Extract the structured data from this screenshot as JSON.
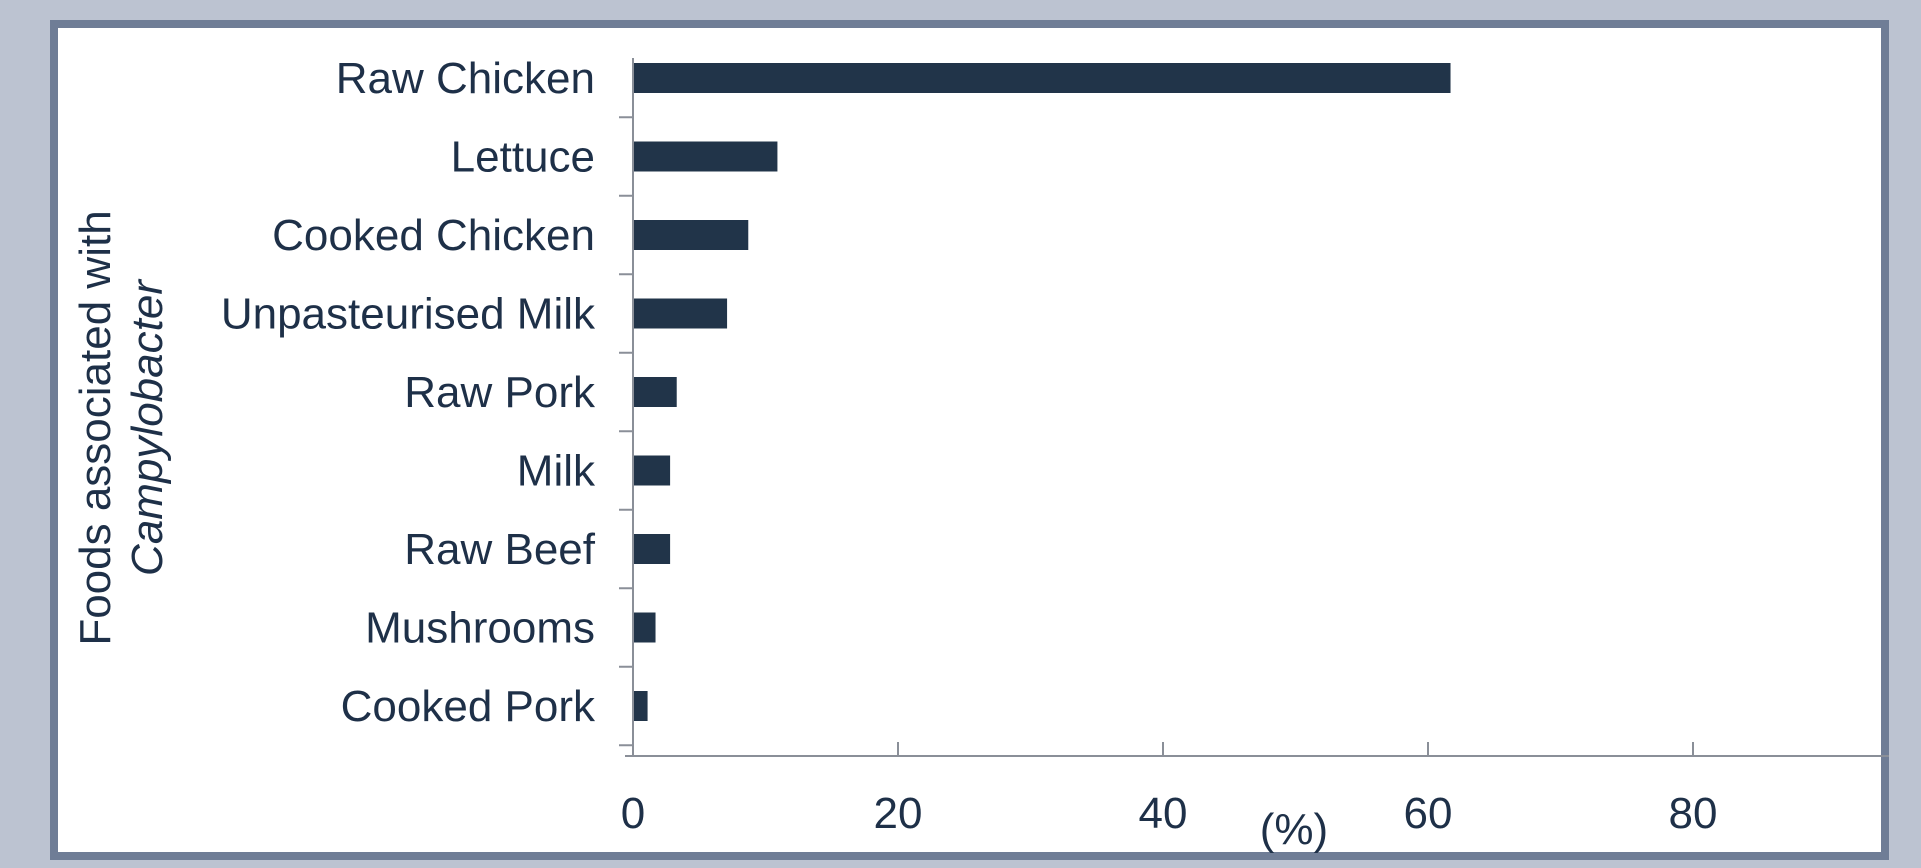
{
  "chart_data": {
    "type": "bar",
    "orientation": "horizontal",
    "categories": [
      "Raw Chicken",
      "Lettuce",
      "Cooked Chicken",
      "Unpasteurised Milk",
      "Raw Pork",
      "Milk",
      "Raw Beef",
      "Mushrooms",
      "Cooked Pork"
    ],
    "values": [
      61.7,
      10.9,
      8.7,
      7.1,
      3.3,
      2.8,
      2.8,
      1.7,
      1.1
    ],
    "title": "",
    "xlabel": "(%)",
    "ylabel_line1": "Foods associated  with",
    "ylabel_line2": "Campylobacter",
    "xlim": [
      0,
      95
    ],
    "xticks": [
      0,
      20,
      40,
      60,
      80
    ],
    "grid": false,
    "bar_color": "#213449"
  }
}
